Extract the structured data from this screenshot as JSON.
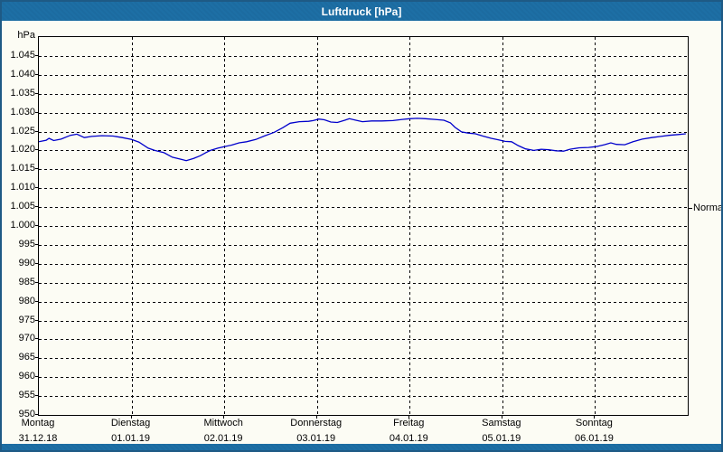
{
  "window": {
    "title": "Luftdruck [hPa]"
  },
  "colors": {
    "title_bar": "#1d6fa5",
    "window_border": "#1e5a85",
    "background": "#fcfcf4",
    "line": "#0000cc",
    "grid": "#000000",
    "text": "#000000"
  },
  "chart_data": {
    "type": "line",
    "title": "Luftdruck [hPa]",
    "unit_label": "hPa",
    "ylim": [
      950,
      1050
    ],
    "grid": "dashed",
    "yticks": [
      {
        "value": 1045,
        "label": "1.045"
      },
      {
        "value": 1040,
        "label": "1.040"
      },
      {
        "value": 1035,
        "label": "1.035"
      },
      {
        "value": 1030,
        "label": "1.030"
      },
      {
        "value": 1025,
        "label": "1.025"
      },
      {
        "value": 1020,
        "label": "1.020"
      },
      {
        "value": 1015,
        "label": "1.015"
      },
      {
        "value": 1010,
        "label": "1.010"
      },
      {
        "value": 1005,
        "label": "1.005"
      },
      {
        "value": 1000,
        "label": "1.000"
      },
      {
        "value": 995,
        "label": "995"
      },
      {
        "value": 990,
        "label": "990"
      },
      {
        "value": 985,
        "label": "985"
      },
      {
        "value": 980,
        "label": "980"
      },
      {
        "value": 975,
        "label": "975"
      },
      {
        "value": 970,
        "label": "970"
      },
      {
        "value": 965,
        "label": "965"
      },
      {
        "value": 960,
        "label": "960"
      },
      {
        "value": 955,
        "label": "955"
      },
      {
        "value": 950,
        "label": "950"
      }
    ],
    "x_axis": {
      "days": [
        {
          "name": "Montag",
          "date": "31.12.18"
        },
        {
          "name": "Dienstag",
          "date": "01.01.19"
        },
        {
          "name": "Mittwoch",
          "date": "02.01.19"
        },
        {
          "name": "Donnerstag",
          "date": "03.01.19"
        },
        {
          "name": "Freitag",
          "date": "04.01.19"
        },
        {
          "name": "Samstag",
          "date": "05.01.19"
        },
        {
          "name": "Sonntag",
          "date": "06.01.19"
        }
      ]
    },
    "right_marker": {
      "label": "Normal",
      "value": 1004.5
    },
    "series": [
      {
        "name": "Luftdruck",
        "color": "#0000cc",
        "points": [
          [
            0.0,
            1022.3
          ],
          [
            0.08,
            1022.7
          ],
          [
            0.11,
            1023.2
          ],
          [
            0.16,
            1022.6
          ],
          [
            0.24,
            1023.0
          ],
          [
            0.34,
            1024.0
          ],
          [
            0.41,
            1024.3
          ],
          [
            0.49,
            1023.4
          ],
          [
            0.57,
            1023.7
          ],
          [
            0.68,
            1023.9
          ],
          [
            0.8,
            1023.8
          ],
          [
            0.9,
            1023.4
          ],
          [
            1.0,
            1022.9
          ],
          [
            1.08,
            1022.2
          ],
          [
            1.18,
            1020.6
          ],
          [
            1.25,
            1020.0
          ],
          [
            1.35,
            1019.4
          ],
          [
            1.44,
            1018.2
          ],
          [
            1.54,
            1017.6
          ],
          [
            1.59,
            1017.3
          ],
          [
            1.67,
            1017.9
          ],
          [
            1.74,
            1018.6
          ],
          [
            1.8,
            1019.4
          ],
          [
            1.85,
            1020.0
          ],
          [
            1.93,
            1020.6
          ],
          [
            2.0,
            1021.0
          ],
          [
            2.08,
            1021.4
          ],
          [
            2.16,
            1022.0
          ],
          [
            2.24,
            1022.3
          ],
          [
            2.34,
            1022.9
          ],
          [
            2.44,
            1023.9
          ],
          [
            2.54,
            1024.8
          ],
          [
            2.63,
            1026.0
          ],
          [
            2.71,
            1027.2
          ],
          [
            2.81,
            1027.6
          ],
          [
            2.91,
            1027.7
          ],
          [
            2.96,
            1027.9
          ],
          [
            3.02,
            1028.3
          ],
          [
            3.08,
            1028.1
          ],
          [
            3.15,
            1027.5
          ],
          [
            3.22,
            1027.4
          ],
          [
            3.3,
            1028.0
          ],
          [
            3.35,
            1028.4
          ],
          [
            3.42,
            1028.0
          ],
          [
            3.49,
            1027.6
          ],
          [
            3.59,
            1027.8
          ],
          [
            3.7,
            1027.8
          ],
          [
            3.82,
            1027.9
          ],
          [
            3.92,
            1028.2
          ],
          [
            4.0,
            1028.4
          ],
          [
            4.08,
            1028.5
          ],
          [
            4.17,
            1028.4
          ],
          [
            4.27,
            1028.2
          ],
          [
            4.37,
            1028.0
          ],
          [
            4.44,
            1027.3
          ],
          [
            4.49,
            1026.1
          ],
          [
            4.56,
            1024.9
          ],
          [
            4.63,
            1024.6
          ],
          [
            4.71,
            1024.4
          ],
          [
            4.79,
            1023.8
          ],
          [
            4.88,
            1023.2
          ],
          [
            4.96,
            1022.8
          ],
          [
            5.03,
            1022.4
          ],
          [
            5.1,
            1022.3
          ],
          [
            5.17,
            1021.3
          ],
          [
            5.25,
            1020.4
          ],
          [
            5.34,
            1020.0
          ],
          [
            5.42,
            1020.3
          ],
          [
            5.5,
            1020.2
          ],
          [
            5.58,
            1019.9
          ],
          [
            5.66,
            1019.8
          ],
          [
            5.73,
            1020.3
          ],
          [
            5.83,
            1020.7
          ],
          [
            5.93,
            1020.8
          ],
          [
            6.01,
            1021.0
          ],
          [
            6.1,
            1021.5
          ],
          [
            6.17,
            1022.0
          ],
          [
            6.23,
            1021.6
          ],
          [
            6.32,
            1021.5
          ],
          [
            6.41,
            1022.3
          ],
          [
            6.51,
            1023.0
          ],
          [
            6.61,
            1023.4
          ],
          [
            6.71,
            1023.7
          ],
          [
            6.8,
            1024.0
          ],
          [
            6.9,
            1024.2
          ],
          [
            6.98,
            1024.4
          ]
        ]
      }
    ]
  }
}
